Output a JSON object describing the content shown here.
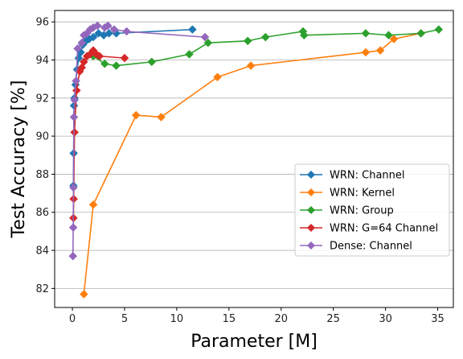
{
  "chart_data": {
    "type": "line",
    "xlabel": "Parameter [M]",
    "ylabel": "Test Accuracy [%]",
    "xlim": [
      -1.7,
      36.5
    ],
    "ylim": [
      81.0,
      96.6
    ],
    "xticks": [
      0,
      5,
      10,
      15,
      20,
      25,
      30,
      35
    ],
    "yticks": [
      82,
      84,
      86,
      88,
      90,
      92,
      94,
      96
    ],
    "grid": "horizontal",
    "legend_position": "center-right",
    "series": [
      {
        "name": "WRN: Channel",
        "color": "#1f77b4",
        "marker": "diamond",
        "points": [
          [
            0.1,
            87.4
          ],
          [
            0.12,
            89.1
          ],
          [
            0.15,
            91.6
          ],
          [
            0.2,
            92.0
          ],
          [
            0.3,
            92.7
          ],
          [
            0.45,
            93.5
          ],
          [
            0.6,
            94.1
          ],
          [
            0.8,
            94.4
          ],
          [
            1.0,
            94.8
          ],
          [
            1.3,
            95.0
          ],
          [
            1.6,
            95.1
          ],
          [
            2.0,
            95.2
          ],
          [
            2.5,
            95.4
          ],
          [
            3.0,
            95.3
          ],
          [
            3.5,
            95.4
          ],
          [
            4.2,
            95.4
          ],
          [
            11.5,
            95.6
          ]
        ]
      },
      {
        "name": "WRN: Kernel",
        "color": "#ff7f0e",
        "marker": "diamond",
        "points": [
          [
            1.1,
            81.7
          ],
          [
            2.0,
            86.4
          ],
          [
            6.1,
            91.1
          ],
          [
            8.5,
            91.0
          ],
          [
            13.9,
            93.1
          ],
          [
            17.1,
            93.7
          ],
          [
            28.1,
            94.4
          ],
          [
            29.5,
            94.5
          ],
          [
            30.8,
            95.1
          ],
          [
            33.4,
            95.4
          ]
        ]
      },
      {
        "name": "WRN: Group",
        "color": "#2ca02c",
        "marker": "diamond",
        "points": [
          [
            2.0,
            94.2
          ],
          [
            3.1,
            93.8
          ],
          [
            4.2,
            93.7
          ],
          [
            7.6,
            93.9
          ],
          [
            11.2,
            94.3
          ],
          [
            13.0,
            94.9
          ],
          [
            16.8,
            95.0
          ],
          [
            18.5,
            95.2
          ],
          [
            22.1,
            95.5
          ],
          [
            22.2,
            95.3
          ],
          [
            28.1,
            95.4
          ],
          [
            30.3,
            95.3
          ],
          [
            33.4,
            95.4
          ],
          [
            35.1,
            95.6
          ]
        ]
      },
      {
        "name": "WRN: G=64 Channel",
        "color": "#d62728",
        "marker": "diamond",
        "points": [
          [
            0.1,
            85.7
          ],
          [
            0.12,
            86.7
          ],
          [
            0.2,
            90.2
          ],
          [
            0.4,
            92.4
          ],
          [
            0.7,
            93.4
          ],
          [
            0.9,
            93.6
          ],
          [
            1.1,
            93.9
          ],
          [
            1.4,
            94.2
          ],
          [
            1.7,
            94.3
          ],
          [
            2.0,
            94.5
          ],
          [
            2.3,
            94.3
          ],
          [
            2.6,
            94.2
          ],
          [
            5.0,
            94.1
          ]
        ]
      },
      {
        "name": "Dense: Channel",
        "color": "#9467bd",
        "marker": "diamond",
        "points": [
          [
            0.05,
            83.7
          ],
          [
            0.08,
            85.2
          ],
          [
            0.1,
            87.3
          ],
          [
            0.15,
            91.0
          ],
          [
            0.2,
            91.9
          ],
          [
            0.35,
            92.9
          ],
          [
            0.5,
            94.6
          ],
          [
            0.9,
            94.9
          ],
          [
            1.1,
            95.3
          ],
          [
            1.4,
            95.4
          ],
          [
            1.7,
            95.6
          ],
          [
            2.0,
            95.7
          ],
          [
            2.4,
            95.8
          ],
          [
            3.1,
            95.7
          ],
          [
            3.4,
            95.8
          ],
          [
            4.0,
            95.6
          ],
          [
            5.2,
            95.5
          ],
          [
            12.7,
            95.2
          ]
        ]
      }
    ]
  }
}
